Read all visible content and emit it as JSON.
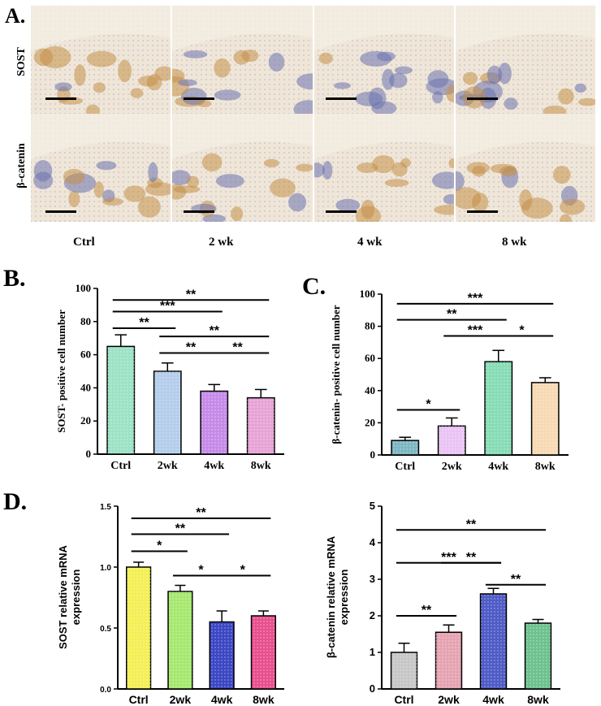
{
  "figure": {
    "panel_a": {
      "letter": "A.",
      "rows": [
        "SOST",
        "β-catenin"
      ],
      "columns": [
        "Ctrl",
        "2 wk",
        "4 wk",
        "8 wk"
      ],
      "colors": {
        "tissue": "#efe6d8",
        "brown": "#c49048",
        "blue": "#6b73b0",
        "cells": "#a99fc4"
      }
    },
    "panel_b": {
      "letter": "B."
    },
    "panel_c": {
      "letter": "C."
    },
    "panel_d": {
      "letter": "D."
    }
  },
  "chart_data": [
    {
      "id": "B",
      "type": "bar",
      "ylabel": "SOST- positive cell number",
      "categories": [
        "Ctrl",
        "2wk",
        "4wk",
        "8wk"
      ],
      "values": [
        65,
        50,
        38,
        34
      ],
      "errors": [
        7,
        5,
        4,
        5
      ],
      "ylim": [
        0,
        100
      ],
      "yticks": [
        "0",
        "20",
        "40",
        "60",
        "80",
        "100"
      ],
      "colors": [
        "#9be3c4",
        "#b4cdeb",
        "#c68be8",
        "#e7a3d6"
      ],
      "significance": [
        {
          "from": "Ctrl",
          "to": "8wk",
          "label": "**",
          "level": 93
        },
        {
          "from": "Ctrl",
          "to": "4wk",
          "label": "***",
          "level": 86
        },
        {
          "from": "Ctrl",
          "to": "2wk",
          "label": "**",
          "level": 76
        },
        {
          "from": "2wk",
          "to": "8wk",
          "label": "**",
          "level": 71
        },
        {
          "from": "2wk",
          "to": "4wk",
          "label": "**",
          "level": 61
        },
        {
          "from": "4wk",
          "to": "8wk",
          "label": "**",
          "level": 61
        }
      ]
    },
    {
      "id": "C",
      "type": "bar",
      "ylabel": "β-catenin- positive cell number",
      "categories": [
        "Ctrl",
        "2wk",
        "4wk",
        "8wk"
      ],
      "values": [
        9,
        18,
        58,
        45
      ],
      "errors": [
        2,
        5,
        7,
        3
      ],
      "ylim": [
        0,
        100
      ],
      "yticks": [
        "0",
        "20",
        "40",
        "60",
        "80",
        "100"
      ],
      "colors": [
        "#7db6c2",
        "#eac4f4",
        "#86dcb5",
        "#f7d9b4"
      ],
      "significance": [
        {
          "from": "Ctrl",
          "to": "8wk",
          "label": "***",
          "level": 94
        },
        {
          "from": "Ctrl",
          "to": "4wk",
          "label": "**",
          "level": 84
        },
        {
          "from": "2wk",
          "to": "4wk",
          "label": "***",
          "level": 74
        },
        {
          "from": "4wk",
          "to": "8wk",
          "label": "*",
          "level": 74
        },
        {
          "from": "Ctrl",
          "to": "2wk",
          "label": "*",
          "level": 28
        }
      ]
    },
    {
      "id": "D1",
      "type": "bar",
      "ylabel": "SOST relative mRNA\nexpression",
      "categories": [
        "Ctrl",
        "2wk",
        "4wk",
        "8wk"
      ],
      "values": [
        1.0,
        0.8,
        0.55,
        0.6
      ],
      "errors": [
        0.04,
        0.05,
        0.09,
        0.04
      ],
      "ylim": [
        0,
        1.5
      ],
      "yticks": [
        "0.0",
        "0.5",
        "1.0",
        "1.5"
      ],
      "colors": [
        "#f4ef55",
        "#a6e86f",
        "#3c47c4",
        "#e8508e"
      ],
      "significance": [
        {
          "from": "Ctrl",
          "to": "8wk",
          "label": "**",
          "level": 1.4
        },
        {
          "from": "Ctrl",
          "to": "4wk",
          "label": "**",
          "level": 1.27
        },
        {
          "from": "Ctrl",
          "to": "2wk",
          "label": "*",
          "level": 1.13
        },
        {
          "from": "2wk",
          "to": "4wk",
          "label": "*",
          "level": 0.93
        },
        {
          "from": "4wk",
          "to": "8wk",
          "label": "*",
          "level": 0.93
        }
      ]
    },
    {
      "id": "D2",
      "type": "bar",
      "ylabel": "β-catenin relative mRNA\nexpression",
      "categories": [
        "Ctrl",
        "2wk",
        "4wk",
        "8wk"
      ],
      "values": [
        1.0,
        1.55,
        2.6,
        1.8
      ],
      "errors": [
        0.25,
        0.2,
        0.15,
        0.1
      ],
      "ylim": [
        0,
        5
      ],
      "yticks": [
        "0",
        "1",
        "2",
        "3",
        "4",
        "5"
      ],
      "colors": [
        "#c7c7c7",
        "#e6a3b2",
        "#4f5cc6",
        "#6ec28d"
      ],
      "significance": [
        {
          "from": "Ctrl",
          "to": "8wk",
          "label": "**",
          "level": 4.35
        },
        {
          "from": "Ctrl",
          "to": "4wk",
          "label": "***",
          "level": 3.45
        },
        {
          "from": "2wk",
          "to": "4wk",
          "label": "**",
          "level": 3.45
        },
        {
          "from": "4wk",
          "to": "8wk",
          "label": "**",
          "level": 2.85
        },
        {
          "from": "Ctrl",
          "to": "2wk",
          "label": "**",
          "level": 2.0
        }
      ]
    }
  ]
}
